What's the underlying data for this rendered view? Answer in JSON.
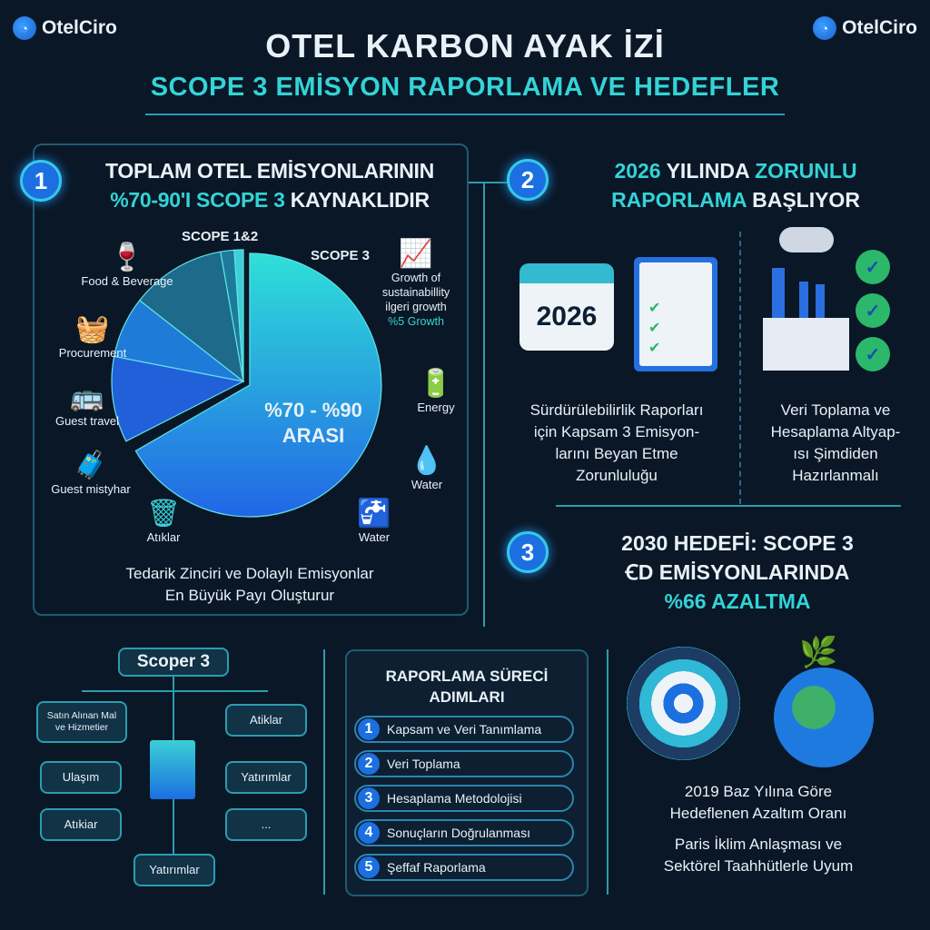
{
  "brand": "OtelCiro",
  "title": "OTEL KARBON AYAK İZİ",
  "subtitle": "SCOPE 3 EMİSYON RAPORLAMA VE HEDEFLER",
  "accent": "#33d3d6",
  "primary": "#1b6fe0",
  "background": "#0a1726",
  "section1": {
    "number": "1",
    "heading_line1": "TOPLAM OTEL EMİSYONLARININ",
    "heading_line2_accent": "%70-90'I SCOPE 3",
    "heading_line2_rest": " KAYNAKLIDIR",
    "pie_label_scope12": "SCOPE 1&2",
    "pie_label_scope3": "SCOPE 3",
    "pie_center_line1": "%70 - %90",
    "pie_center_line2": "ARASI",
    "categories": [
      {
        "label": "Food & Beverage",
        "icon": "food-cloche-wine-icon"
      },
      {
        "label": "Procurement",
        "icon": "procurement-cart-icon"
      },
      {
        "label": "Guest travel",
        "icon": "bus-icon"
      },
      {
        "label": "Guest mistyhar",
        "icon": "traveler-luggage-icon"
      },
      {
        "label": "Atıklar",
        "icon": "waste-bin-icon"
      },
      {
        "label": "Water",
        "icon": "water-pipe-icon"
      },
      {
        "label": "Water",
        "icon": "water-drop-icon"
      },
      {
        "label": "Energy",
        "icon": "battery-bolt-icon"
      }
    ],
    "growth": {
      "line1": "Growth of",
      "line2": "sustainabillity",
      "line3": "ilgeri growth",
      "line4": "%5 Growth",
      "icon": "growth-chart-icon"
    },
    "footer_line1": "Tedarik Zinciri ve Dolaylı Emisyonlar",
    "footer_line2": "En Büyük Payı Oluşturur"
  },
  "section2": {
    "number": "2",
    "heading_a": "2026",
    "heading_b": " YILINDA ",
    "heading_c": "ZORUNLU",
    "heading_d": "RAPORLAMA",
    "heading_e": " BAŞLIYOR",
    "calendar_year": "2026",
    "left_text": [
      "Sürdürülebilirlik Raporları",
      "için Kapsam 3 Emisyon-",
      "larını Beyan Etme",
      "Zorunluluğu"
    ],
    "right_text": [
      "Veri Toplama ve",
      "Hesaplama Altyap-",
      "ısı Şimdiden",
      "Hazırlanmalı"
    ]
  },
  "section3": {
    "number": "3",
    "heading_line1": "2030 HEDEFİ: SCOPE 3",
    "heading_line2": "ꞒD EMİSYONLARINDA",
    "heading_line3": "%66 AZALTMA",
    "text1": [
      "2019 Baz Yılına Göre",
      "Hedeflenen Azaltım Oranı"
    ],
    "text2": [
      "Paris İklim Anlaşması ve",
      "Sektörel Taahhütlerle Uyum"
    ]
  },
  "tree": {
    "root": "Scoper 3",
    "left": [
      "Satın Alınan Mal ve Hizmetier",
      "Ulaşım",
      "Atıkiar"
    ],
    "right": [
      "Atiklar",
      "Yatırımlar",
      "..."
    ],
    "bottom": "Yatırımlar"
  },
  "process": {
    "title_line1": "RAPORLAMA SÜRECİ",
    "title_line2": "ADIMLARI",
    "steps": [
      {
        "n": "1",
        "label": "Kapsam ve Veri Tanımlama"
      },
      {
        "n": "2",
        "label": "Veri Toplama"
      },
      {
        "n": "3",
        "label": "Hesaplama Metodolojisi"
      },
      {
        "n": "4",
        "label": "Sonuçların Doğrulanması"
      },
      {
        "n": "5",
        "label": "Şeffaf Raporlama"
      }
    ]
  }
}
